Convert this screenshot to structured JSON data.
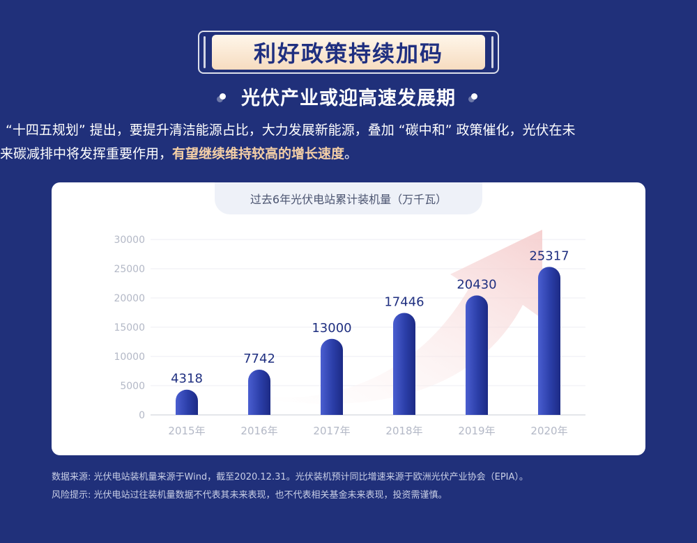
{
  "header": {
    "banner": "利好政策持续加码",
    "subtitle": "光伏产业或迎高速发展期"
  },
  "intro": {
    "line1": "“十四五规划” 提出，要提升清洁能源占比，大力发展新能源，叠加 “碳中和” 政策催化，光伏在未",
    "line2_plain": "来碳减排中将发挥重要作用，",
    "line2_highlight": "有望继续维持较高的增长速度",
    "line2_end": "。"
  },
  "chart_data": {
    "type": "bar",
    "title": "过去6年光伏电站累计装机量（万千瓦）",
    "categories": [
      "2015年",
      "2016年",
      "2017年",
      "2018年",
      "2019年",
      "2020年"
    ],
    "values": [
      4318,
      7742,
      13000,
      17446,
      20430,
      25317
    ],
    "yticks": [
      0,
      5000,
      10000,
      15000,
      20000,
      25000,
      30000
    ],
    "ylim": [
      0,
      30000
    ],
    "xlabel": "",
    "ylabel": "",
    "grid": true,
    "bar_color": "#2b3ea8",
    "label_color": "#1f2f80",
    "arrow_color": "#f4c9c9"
  },
  "footnotes": {
    "source": "数据来源: 光伏电站装机量来源于Wind，截至2020.12.31。光伏装机预计同比增速来源于欧洲光伏产业协会（EPIA）。",
    "risk": "风险提示: 光伏电站过往装机量数据不代表其未来表现，也不代表相关基金未来表现，投资需谨慎。"
  },
  "colors": {
    "background": "#20307a",
    "banner_text": "#1f2f80",
    "highlight": "#f4cfa6"
  }
}
